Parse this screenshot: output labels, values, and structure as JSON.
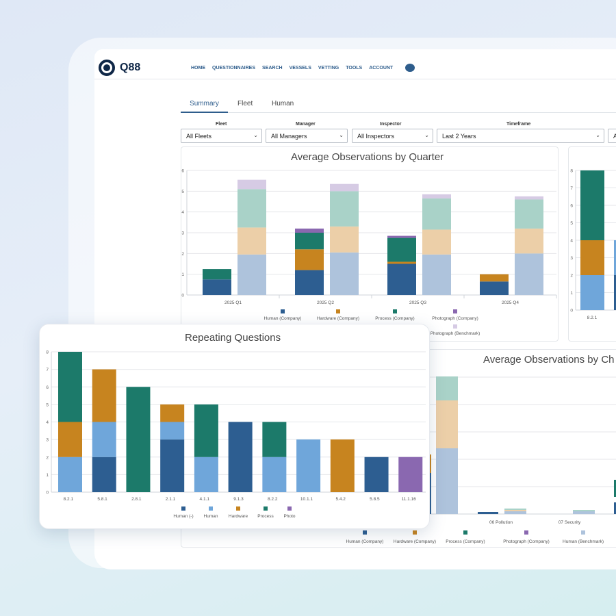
{
  "app": {
    "logo_text": "Q88"
  },
  "nav": [
    "HOME",
    "QUESTIONNAIRES",
    "SEARCH",
    "VESSELS",
    "VETTING",
    "TOOLS",
    "ACCOUNT"
  ],
  "tabs": [
    {
      "label": "Summary",
      "active": true
    },
    {
      "label": "Fleet",
      "active": false
    },
    {
      "label": "Human",
      "active": false
    }
  ],
  "filters": [
    {
      "label": "Fleet",
      "value": "All Fleets"
    },
    {
      "label": "Manager",
      "value": "All Managers"
    },
    {
      "label": "Inspector",
      "value": "All Inspectors"
    },
    {
      "label": "Timeframe",
      "value": "Last 2 Years"
    },
    {
      "label": "",
      "value": "A"
    }
  ],
  "colors": {
    "human_company": "#2d5e91",
    "hardware_company": "#c7841f",
    "process_company": "#1c7a6a",
    "photograph_company": "#8a68b0",
    "human_benchmark": "#aec3dc",
    "hardware_benchmark": "#eccfa8",
    "process_benchmark": "#a9d2c8",
    "photograph_benchmark": "#d6cbe4",
    "human_light": "#6fa6da"
  },
  "chart_data": [
    {
      "type": "bar",
      "title": "Average Observations by Quarter",
      "categories": [
        "2025 Q1",
        "2025 Q2",
        "2025 Q3",
        "2025 Q4"
      ],
      "ylim": [
        0,
        6
      ],
      "yticks": [
        "0",
        "1",
        "2",
        "3",
        "4",
        "5",
        "6"
      ],
      "stacked": true,
      "groups": [
        "Company",
        "Benchmark"
      ],
      "series": [
        {
          "name": "Human (Company)",
          "group": "Company",
          "color": "#2d5e91",
          "values": [
            0.75,
            1.2,
            1.5,
            0.65
          ]
        },
        {
          "name": "Hardware (Company)",
          "group": "Company",
          "color": "#c7841f",
          "values": [
            0,
            1.0,
            0.1,
            0.35
          ]
        },
        {
          "name": "Process (Company)",
          "group": "Company",
          "color": "#1c7a6a",
          "values": [
            0.5,
            0.8,
            1.15,
            0
          ]
        },
        {
          "name": "Photograph (Company)",
          "group": "Company",
          "color": "#8a68b0",
          "values": [
            0,
            0.2,
            0.1,
            0
          ]
        },
        {
          "name": "",
          "group": "Benchmark",
          "color": "#aec3dc",
          "values": [
            1.95,
            2.05,
            1.95,
            2.0
          ]
        },
        {
          "name": "",
          "group": "Benchmark",
          "color": "#eccfa8",
          "values": [
            1.3,
            1.25,
            1.2,
            1.2
          ]
        },
        {
          "name": "",
          "group": "Benchmark",
          "color": "#a9d2c8",
          "values": [
            1.85,
            1.7,
            1.5,
            1.4
          ]
        },
        {
          "name": "Photograph (Benchmark)",
          "group": "Benchmark",
          "color": "#d6cbe4",
          "values": [
            0.45,
            0.35,
            0.2,
            0.15
          ]
        }
      ],
      "legend": [
        "Human (Company)",
        "Hardware (Company)",
        "Process (Company)",
        "Photograph (Company)",
        "Photograph (Benchmark)"
      ]
    },
    {
      "type": "bar",
      "title": "Repeating Questions",
      "categories": [
        "8.2.1",
        "5.8.1",
        "2.8.1",
        "2.1.1",
        "4.1.1",
        "9.1.3",
        "8.2.2",
        "10.1.1",
        "5.4.2",
        "5.8.5",
        "11.1.16"
      ],
      "ylim": [
        0,
        8
      ],
      "yticks": [
        "0",
        "1",
        "2",
        "3",
        "4",
        "5",
        "6",
        "7",
        "8"
      ],
      "stacked": true,
      "series": [
        {
          "name": "Human (-)",
          "color": "#2d5e91",
          "values": [
            0,
            2,
            0,
            3,
            0,
            4,
            0,
            0,
            0,
            2,
            0
          ]
        },
        {
          "name": "Human",
          "color": "#6fa6da",
          "values": [
            2,
            2,
            0,
            1,
            2,
            0,
            2,
            3,
            0,
            0,
            0
          ]
        },
        {
          "name": "Hardware",
          "color": "#c7841f",
          "values": [
            2,
            3,
            0,
            1,
            0,
            0,
            0,
            0,
            3,
            0,
            0
          ]
        },
        {
          "name": "Process",
          "color": "#1c7a6a",
          "values": [
            4,
            0,
            6,
            0,
            3,
            0,
            2,
            0,
            0,
            0,
            0
          ]
        },
        {
          "name": "Photo",
          "color": "#8a68b0",
          "values": [
            0,
            0,
            0,
            0,
            0,
            0,
            0,
            0,
            0,
            0,
            2
          ]
        }
      ]
    },
    {
      "type": "bar",
      "title": "",
      "categories": [
        "8.2.1"
      ],
      "ylim": [
        0,
        8
      ],
      "yticks": [
        "0",
        "1",
        "2",
        "3",
        "4",
        "5",
        "6",
        "7",
        "8"
      ],
      "stacked": true,
      "series": [
        {
          "name": "",
          "color": "#6fa6da",
          "values": [
            2
          ]
        },
        {
          "name": "",
          "color": "#c7841f",
          "values": [
            2
          ]
        },
        {
          "name": "",
          "color": "#1c7a6a",
          "values": [
            4
          ]
        }
      ]
    },
    {
      "type": "bar",
      "title": "Average Observations by Ch",
      "categories": [
        ".6 Safety",
        "06 Pollution",
        "07 Security"
      ],
      "stacked": true,
      "legend": [
        "Human (Company)",
        "Hardware (Company)",
        "Process (Company)",
        "Photograph (Company)",
        "Human (Benchmark)"
      ]
    }
  ]
}
